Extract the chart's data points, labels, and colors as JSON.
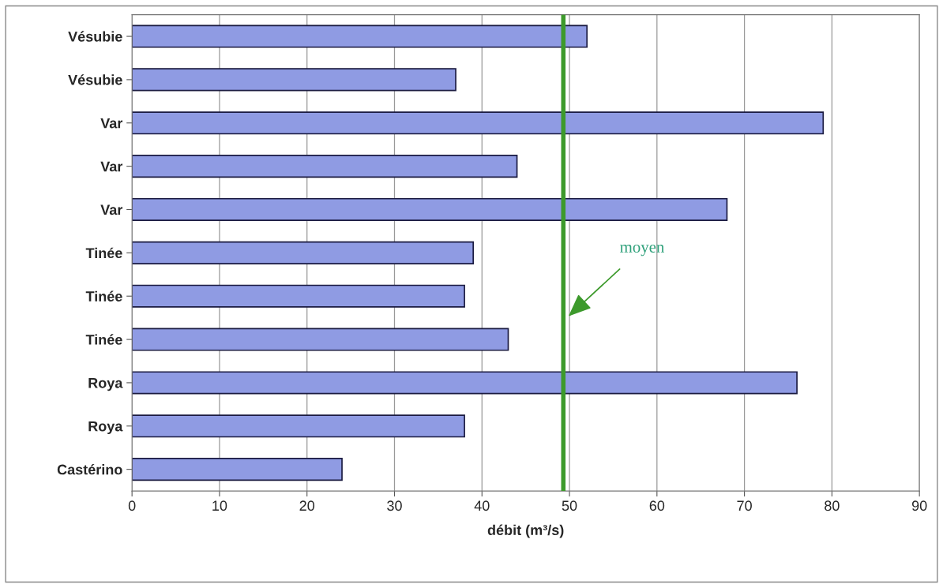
{
  "chart_data": {
    "type": "bar",
    "orientation": "horizontal",
    "xlabel": "débit (m³/s)",
    "categories": [
      "Vésubie",
      "Vésubie",
      "Var",
      "Var",
      "Var",
      "Tinée",
      "Tinée",
      "Tinée",
      "Roya",
      "Roya",
      "Castérino"
    ],
    "values": [
      52,
      37,
      79,
      44,
      68,
      39,
      38,
      43,
      76,
      38,
      24
    ],
    "color": "#8f9be3",
    "xlim": [
      0,
      90
    ],
    "xticks": [
      0,
      10,
      20,
      30,
      40,
      50,
      60,
      70,
      80,
      90
    ],
    "grid": "x",
    "legend": false,
    "ref_lines": [
      {
        "axis": "x",
        "value": 49.3,
        "label": "moyen",
        "color": "#3d9a2c",
        "line_style": "solid"
      }
    ]
  }
}
